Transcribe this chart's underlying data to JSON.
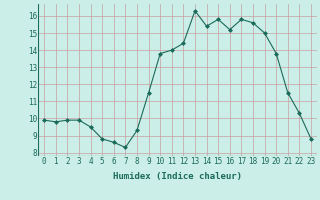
{
  "x": [
    0,
    1,
    2,
    3,
    4,
    5,
    6,
    7,
    8,
    9,
    10,
    11,
    12,
    13,
    14,
    15,
    16,
    17,
    18,
    19,
    20,
    21,
    22,
    23
  ],
  "y": [
    9.9,
    9.8,
    9.9,
    9.9,
    9.5,
    8.8,
    8.6,
    8.3,
    9.3,
    11.5,
    13.8,
    14.0,
    14.4,
    16.3,
    15.4,
    15.8,
    15.2,
    15.8,
    15.6,
    15.0,
    13.8,
    11.5,
    10.3,
    8.8
  ],
  "line_color": "#1a6b5a",
  "bg_color": "#cceee8",
  "grid_color_v": "#c8a0a0",
  "grid_color_h": "#c8a0a0",
  "xlabel": "Humidex (Indice chaleur)",
  "ylim": [
    7.8,
    16.7
  ],
  "xlim": [
    -0.5,
    23.5
  ],
  "yticks": [
    8,
    9,
    10,
    11,
    12,
    13,
    14,
    15,
    16
  ],
  "xticks": [
    0,
    1,
    2,
    3,
    4,
    5,
    6,
    7,
    8,
    9,
    10,
    11,
    12,
    13,
    14,
    15,
    16,
    17,
    18,
    19,
    20,
    21,
    22,
    23
  ],
  "xtick_labels": [
    "0",
    "1",
    "2",
    "3",
    "4",
    "5",
    "6",
    "7",
    "8",
    "9",
    "10",
    "11",
    "12",
    "13",
    "14",
    "15",
    "16",
    "17",
    "18",
    "19",
    "20",
    "21",
    "22",
    "23"
  ],
  "label_fontsize": 6.5,
  "tick_fontsize": 5.5
}
